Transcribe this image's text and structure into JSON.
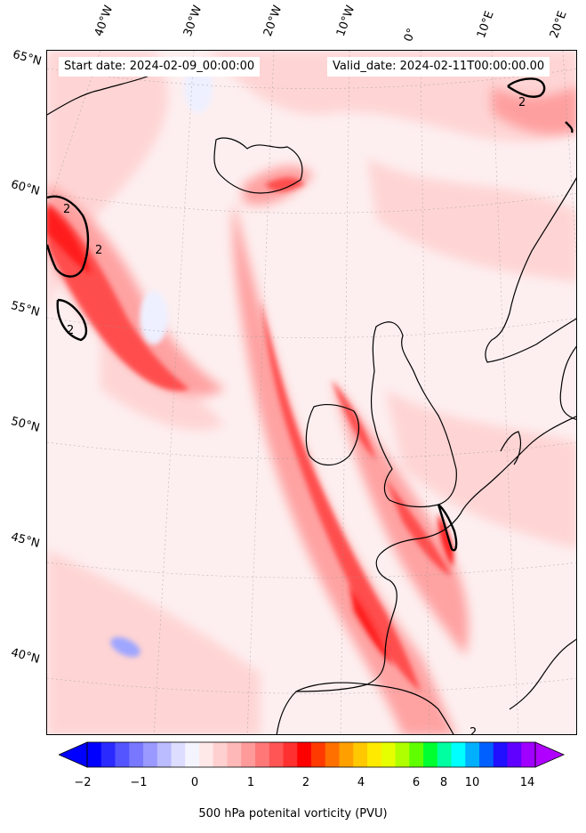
{
  "annotations": {
    "start_date": "Start date: 2024-02-09_00:00:00",
    "valid_date": "Valid_date: 2024-02-11T00:00:00.00"
  },
  "longitude_labels": [
    "40°W",
    "30°W",
    "20°W",
    "10°W",
    "0°",
    "10°E",
    "20°E"
  ],
  "latitude_labels": [
    "65°N",
    "60°N",
    "55°N",
    "50°N",
    "45°N",
    "40°N"
  ],
  "colorbar": {
    "label": "500 hPa potenital vorticity (PVU)",
    "tick_labels": [
      "−2",
      "−1",
      "0",
      "1",
      "2",
      "4",
      "6",
      "8",
      "10",
      "14"
    ],
    "colors": [
      "#0000ff",
      "#2a2aff",
      "#5555ff",
      "#7777ff",
      "#9999ff",
      "#bbbbff",
      "#ddddff",
      "#f4f4ff",
      "#ffe8e8",
      "#ffd0d0",
      "#ffb8b8",
      "#ff9a9a",
      "#ff7878",
      "#ff5555",
      "#ff3030",
      "#ff0000",
      "#ff3a00",
      "#ff7000",
      "#ffa000",
      "#ffc800",
      "#ffea00",
      "#e6ff00",
      "#b0ff00",
      "#60ff00",
      "#00ff30",
      "#00ffa0",
      "#00ffff",
      "#00b0ff",
      "#0060ff",
      "#2010ff",
      "#6000ff",
      "#a000ff"
    ]
  },
  "map": {
    "field_colors": {
      "background": "#fdeff0",
      "light": "#ffd9d9",
      "medium": "#ff9a9a",
      "strong": "#ff4a4a",
      "intense": "#ff1a1a",
      "negative": "#9fa6ff",
      "neg_light": "#eef0ff"
    },
    "contour_label": "2"
  }
}
